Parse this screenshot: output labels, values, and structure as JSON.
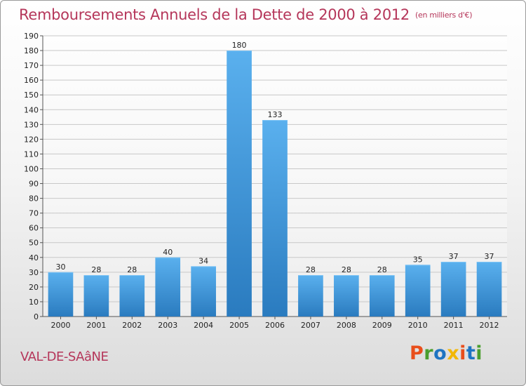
{
  "header": {
    "title": "Remboursements Annuels de la Dette de 2000 à 2012",
    "unit": "(en milliers d'€)"
  },
  "footer": {
    "place": "VAL-DE-SAâNE",
    "brand": "Proxiti",
    "brand_colors": [
      "#e94e1b",
      "#4a9e2e",
      "#1e74c2",
      "#f2b705",
      "#e94e1b",
      "#1e74c2",
      "#4a9e2e"
    ]
  },
  "colors": {
    "bar_top": "#5ab0ee",
    "bar_bottom": "#2a7bbf",
    "title": "#b5365a",
    "grid": "#c8c8c8"
  },
  "chart_data": {
    "type": "bar",
    "title": "Remboursements Annuels de la Dette de 2000 à 2012",
    "categories": [
      "2000",
      "2001",
      "2002",
      "2003",
      "2004",
      "2005",
      "2006",
      "2007",
      "2008",
      "2009",
      "2010",
      "2011",
      "2012"
    ],
    "values": [
      30,
      28,
      28,
      40,
      34,
      180,
      133,
      28,
      28,
      28,
      35,
      37,
      37
    ],
    "ylim": [
      0,
      190
    ],
    "yticks": [
      0,
      10,
      20,
      30,
      40,
      50,
      60,
      70,
      80,
      90,
      100,
      110,
      120,
      130,
      140,
      150,
      160,
      170,
      180,
      190
    ],
    "grid": true,
    "xlabel": "",
    "ylabel": ""
  }
}
